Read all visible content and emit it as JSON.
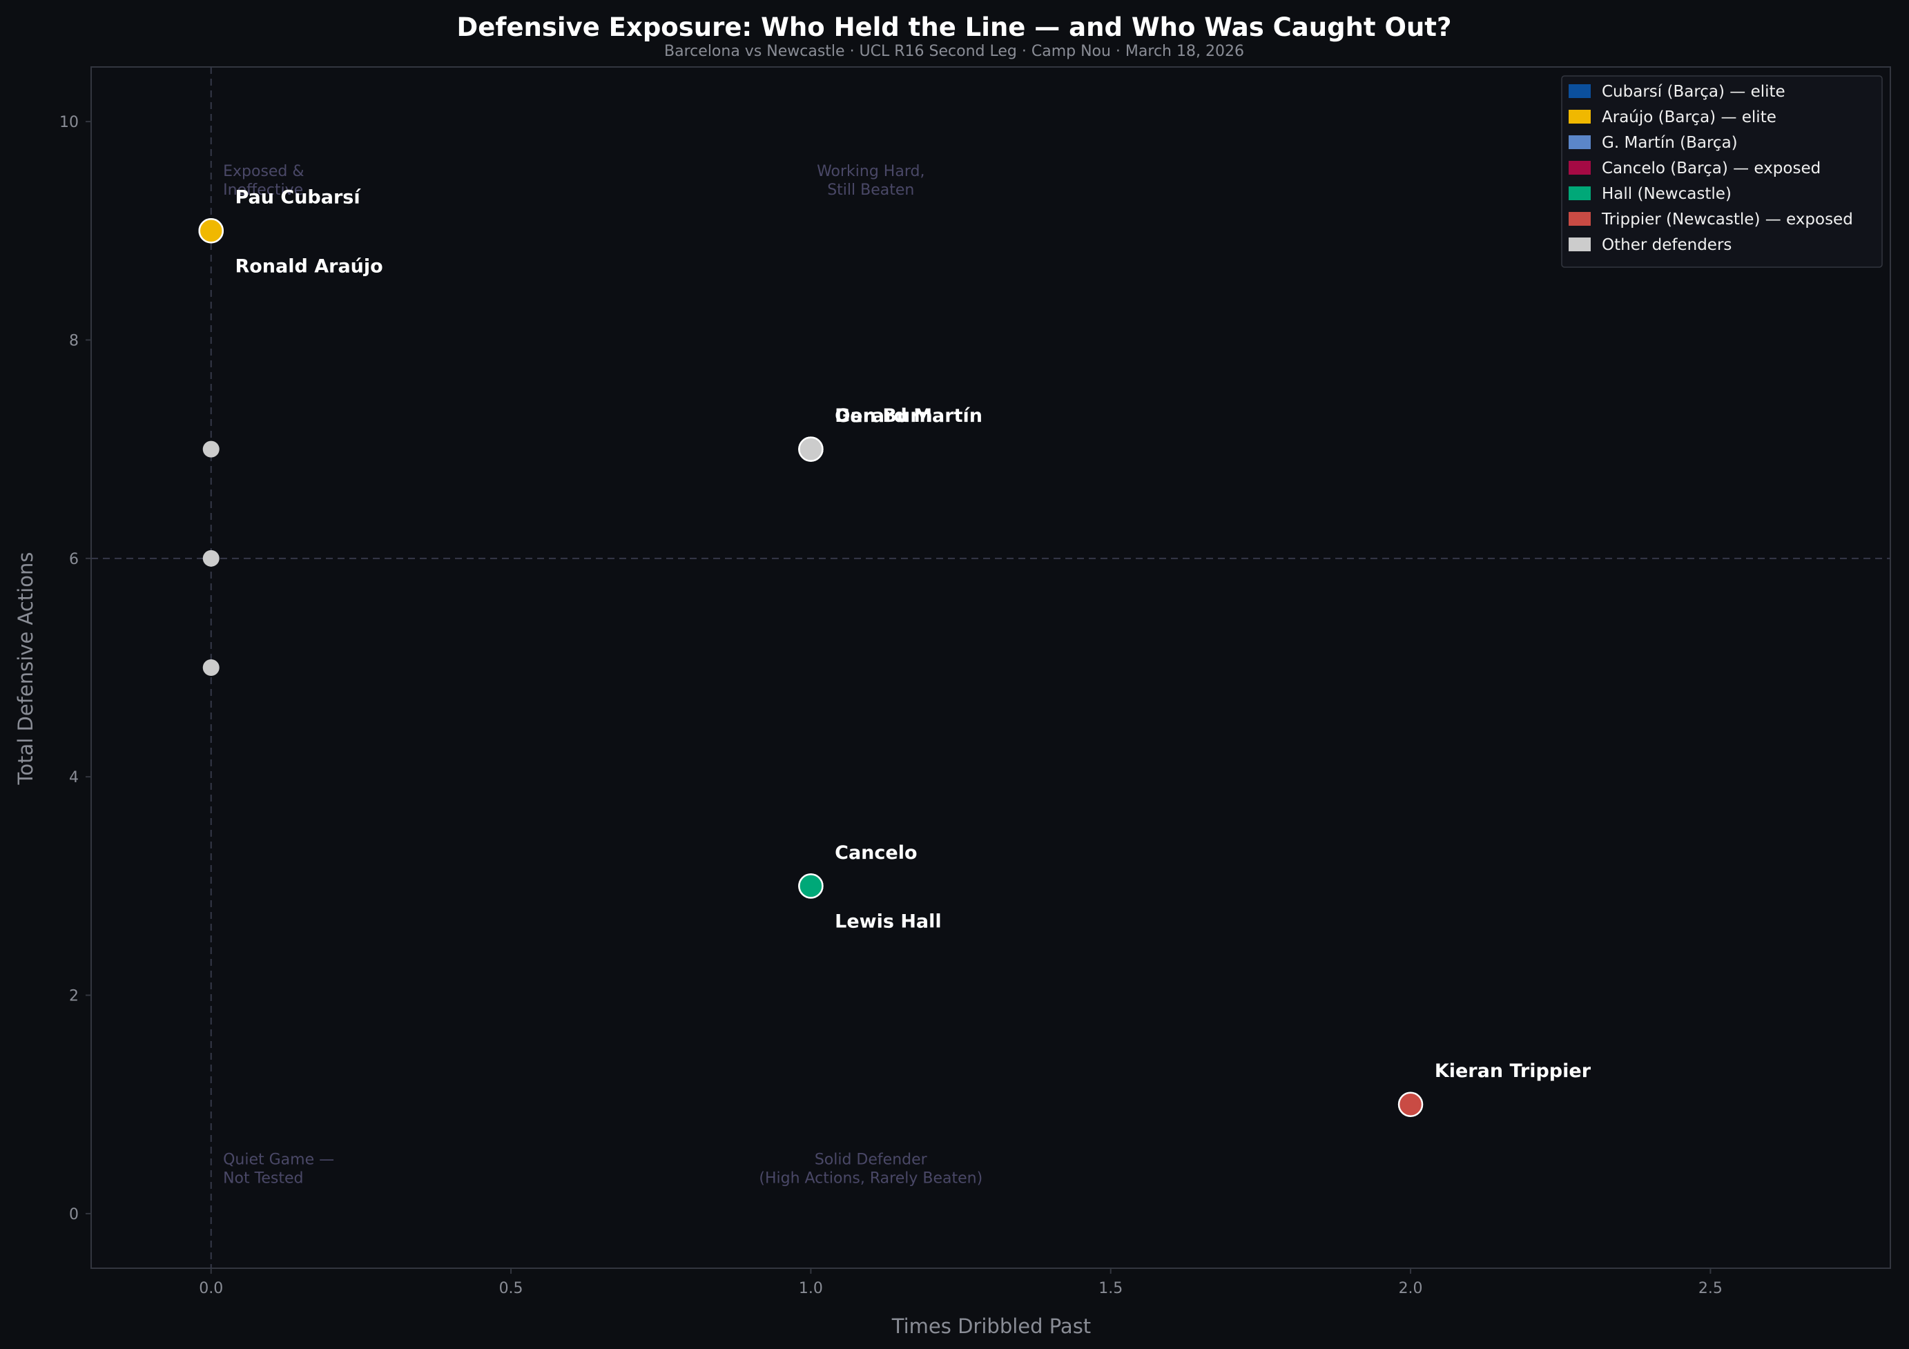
{
  "colors": {
    "background": "#0c0e12",
    "plot_background": "#0c0e13",
    "frame": "#33363f",
    "guide_line": "#353848",
    "tick_text": "#8a8d96",
    "axis_label": "#8a8d96",
    "title": "#ffffff",
    "subtitle": "#8a8d96",
    "quadrant_text": "#4a4867",
    "point_label": "#ffffff",
    "legend_bg": "#11131a",
    "legend_text": "#f0f0f0"
  },
  "chart_data": {
    "type": "scatter",
    "title": "Defensive Exposure: Who Held the Line — and Who Was Caught Out?",
    "subtitle": "Barcelona vs Newcastle · UCL R16 Second Leg · Camp Nou · March 18, 2026",
    "xlabel": "Times Dribbled Past",
    "ylabel": "Total Defensive Actions",
    "xlim": [
      -0.2,
      2.8
    ],
    "ylim": [
      -0.5,
      10.5
    ],
    "xticks": [
      0.0,
      0.5,
      1.0,
      1.5,
      2.0,
      2.5
    ],
    "xtick_labels": [
      "0.0",
      "0.5",
      "1.0",
      "1.5",
      "2.0",
      "2.5"
    ],
    "yticks": [
      0,
      2,
      4,
      6,
      8,
      10
    ],
    "ytick_labels": [
      "0",
      "2",
      "4",
      "6",
      "8",
      "10"
    ],
    "grid": false,
    "reference_lines": {
      "x": 0,
      "y": 6
    },
    "legend_position": "top-right",
    "legend": [
      {
        "label": "Cubarsí (Barça) — elite",
        "color": "#0b4f9c"
      },
      {
        "label": "Araújo (Barça) — elite",
        "color": "#f0b800"
      },
      {
        "label": "G. Martín (Barça)",
        "color": "#5b86c9"
      },
      {
        "label": "Cancelo (Barça) — exposed",
        "color": "#a50a44"
      },
      {
        "label": "Hall (Newcastle)",
        "color": "#00a878"
      },
      {
        "label": "Trippier (Newcastle) — exposed",
        "color": "#c94b44"
      },
      {
        "label": "Other defenders",
        "color": "#cccccc"
      }
    ],
    "quadrant_labels": [
      {
        "text": [
          "Exposed &",
          "Ineffective"
        ],
        "x": 0.02,
        "y": 9.5,
        "align": "start"
      },
      {
        "text": [
          "Working Hard,",
          "Still Beaten"
        ],
        "x": 1.1,
        "y": 9.5,
        "align": "middle"
      },
      {
        "text": [
          "Quiet Game —",
          "Not Tested"
        ],
        "x": 0.02,
        "y": 0.45,
        "align": "start"
      },
      {
        "text": [
          "Solid Defender",
          "(High Actions, Rarely Beaten)"
        ],
        "x": 1.1,
        "y": 0.45,
        "align": "middle"
      }
    ],
    "points": [
      {
        "name": "Pau Cubarsí",
        "x": 0,
        "y": 9,
        "color": "#0b4f9c",
        "size": "large",
        "label_dx": 0.04,
        "label_dy": 0.25
      },
      {
        "name": "Ronald Araújo",
        "x": 0,
        "y": 9,
        "color": "#f0b800",
        "size": "large",
        "label_dx": 0.04,
        "label_dy": -0.38
      },
      {
        "name": "Other",
        "x": 0,
        "y": 7,
        "color": "#cccccc",
        "size": "small"
      },
      {
        "name": "Other",
        "x": 0,
        "y": 6,
        "color": "#cccccc",
        "size": "small"
      },
      {
        "name": "Other",
        "x": 0,
        "y": 5,
        "color": "#cccccc",
        "size": "small"
      },
      {
        "name": "Dan Burn",
        "x": 1,
        "y": 7,
        "color": "#cccccc",
        "size": "large",
        "label_dx": 0.04,
        "label_dy": 0.25
      },
      {
        "name": "Gerard Martín",
        "x": 1,
        "y": 7,
        "color": "#cccccc",
        "size": "large",
        "label_dx": 0.04,
        "label_dy": 0.25
      },
      {
        "name": "Cancelo",
        "x": 1,
        "y": 3,
        "color": "#00a878",
        "size": "large",
        "label_dx": 0.04,
        "label_dy": 0.25
      },
      {
        "name": "Lewis Hall",
        "x": 1,
        "y": 3,
        "color": "#00a878",
        "size": "large",
        "label_dx": 0.04,
        "label_dy": -0.38
      },
      {
        "name": "Kieran Trippier",
        "x": 2,
        "y": 1,
        "color": "#c94b44",
        "size": "large",
        "label_dx": 0.04,
        "label_dy": 0.25
      }
    ]
  }
}
